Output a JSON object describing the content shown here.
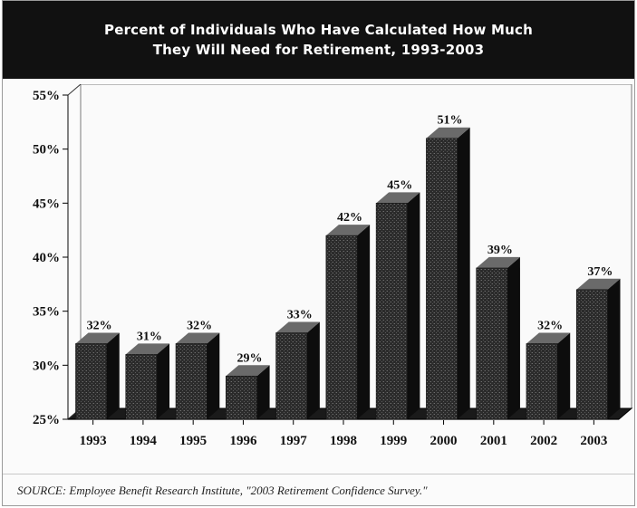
{
  "header": {
    "title_line1": "Percent of Individuals Who Have Calculated How Much",
    "title_line2": "They Will Need for Retirement, 1993-2003"
  },
  "source": "SOURCE: Employee Benefit Research Institute, \"2003 Retirement Confidence Survey.\"",
  "chart_data": {
    "type": "bar",
    "title": "Percent of Individuals Who Have Calculated How Much They Will Need for Retirement, 1993-2003",
    "categories": [
      "1993",
      "1994",
      "1995",
      "1996",
      "1997",
      "1998",
      "1999",
      "2000",
      "2001",
      "2002",
      "2003"
    ],
    "values": [
      32,
      31,
      32,
      29,
      33,
      42,
      45,
      51,
      39,
      32,
      37
    ],
    "data_labels": [
      "32%",
      "31%",
      "32%",
      "29%",
      "33%",
      "42%",
      "45%",
      "51%",
      "39%",
      "32%",
      "37%"
    ],
    "ylim": [
      25,
      55
    ],
    "yticks": [
      25,
      30,
      35,
      40,
      45,
      50,
      55
    ],
    "ytick_labels": [
      "25%",
      "30%",
      "35%",
      "40%",
      "45%",
      "50%",
      "55%"
    ],
    "grid": false,
    "style": "3d",
    "colors": {
      "bar_front": "#2b2b2b",
      "bar_side": "#0d0d0d",
      "bar_top": "#6a6a6a"
    }
  }
}
